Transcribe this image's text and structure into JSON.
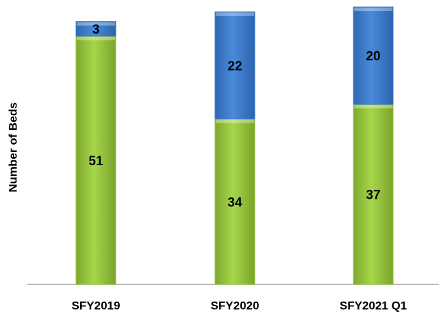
{
  "chart_data": {
    "type": "bar",
    "stacked": true,
    "y_label": "Number of Beds",
    "categories": [
      "SFY2019",
      "SFY2020",
      "SFY2021 Q1"
    ],
    "series": [
      {
        "color": "#96c83c",
        "values": [
          51,
          34,
          37
        ]
      },
      {
        "color": "#3e7dcc",
        "values": [
          3,
          22,
          20
        ]
      }
    ],
    "ylim": [
      0,
      58
    ]
  }
}
